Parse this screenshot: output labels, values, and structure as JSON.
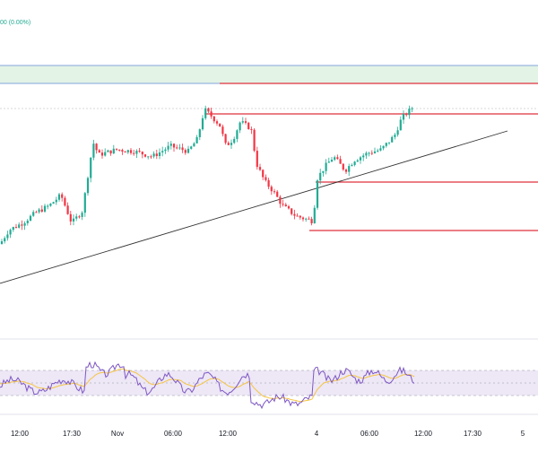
{
  "header": {
    "change_text": "00 (0.00%)"
  },
  "colors": {
    "up": "#22ab94",
    "down": "#f23645",
    "level_line": "#e0303f",
    "trendline": "#333333",
    "zone_fill": "#e3f4e6",
    "zone_border": "#5e8ad6",
    "rsi": "#7e57c2",
    "rsi_ma": "#f5c542",
    "rsi_band": "#ede7f6",
    "grid": "#d1d4dc"
  },
  "chart_data": {
    "type": "candlestick",
    "x_tick_labels": [
      "12:00",
      "17:30",
      "Nov",
      "06:00",
      "12:00",
      "4",
      "06:00",
      "12:00",
      "17:30",
      "5"
    ],
    "price_path": [
      [
        0,
        0.22
      ],
      [
        10,
        0.3
      ],
      [
        25,
        0.34
      ],
      [
        40,
        0.4
      ],
      [
        55,
        0.44
      ],
      [
        68,
        0.5
      ],
      [
        80,
        0.34
      ],
      [
        92,
        0.41
      ],
      [
        100,
        0.68
      ],
      [
        104,
        0.8
      ],
      [
        110,
        0.73
      ],
      [
        130,
        0.76
      ],
      [
        150,
        0.75
      ],
      [
        170,
        0.72
      ],
      [
        190,
        0.78
      ],
      [
        210,
        0.75
      ],
      [
        220,
        0.82
      ],
      [
        228,
        0.99
      ],
      [
        236,
        0.95
      ],
      [
        245,
        0.9
      ],
      [
        252,
        0.78
      ],
      [
        260,
        0.82
      ],
      [
        268,
        0.92
      ],
      [
        280,
        0.88
      ],
      [
        286,
        0.68
      ],
      [
        295,
        0.58
      ],
      [
        305,
        0.52
      ],
      [
        315,
        0.44
      ],
      [
        330,
        0.38
      ],
      [
        350,
        0.35
      ],
      [
        352,
        0.58
      ],
      [
        362,
        0.66
      ],
      [
        372,
        0.72
      ],
      [
        385,
        0.64
      ],
      [
        395,
        0.7
      ],
      [
        410,
        0.74
      ],
      [
        425,
        0.76
      ],
      [
        440,
        0.84
      ],
      [
        448,
        0.94
      ],
      [
        460,
        1.0
      ]
    ],
    "levels": [
      {
        "name": "upper-resistance",
        "from_x": 245,
        "y_level": "top"
      },
      {
        "name": "recent-high",
        "from_x": 228,
        "y_level": "high"
      },
      {
        "name": "mid-support",
        "from_x": 352,
        "y_level": "mid"
      },
      {
        "name": "low-support",
        "from_x": 345,
        "y_level": "low"
      }
    ],
    "rsi": {
      "upper_band": 70,
      "middle": 50,
      "lower_band": 30,
      "ylim": [
        0,
        100
      ]
    }
  }
}
